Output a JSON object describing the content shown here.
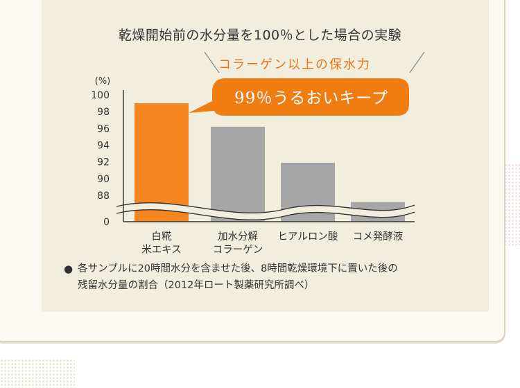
{
  "chart_data": {
    "type": "bar",
    "title": "乾燥開始前の水分量を100％とした場合の実験",
    "subtitle": "コラーゲン以上の保水力",
    "callout": "99％うるおいキープ",
    "ylabel": "(%)",
    "categories": [
      [
        "白糀",
        "米エキス"
      ],
      [
        "加水分解",
        "コラーゲン"
      ],
      [
        "ヒアルロン酸"
      ],
      [
        "コメ発酵液"
      ]
    ],
    "values": [
      99.0,
      96.2,
      91.9,
      87.2
    ],
    "yticks": [
      "100",
      "98",
      "96",
      "94",
      "92",
      "90",
      "88"
    ],
    "yzero": "0",
    "ylim": [
      88,
      100
    ],
    "axis_break": true,
    "grid": false,
    "colors": [
      "#f5861f",
      "#a6a6a6",
      "#a6a6a6",
      "#a6a6a6"
    ]
  },
  "note": {
    "bullet": "●",
    "lines": [
      "各サンプルに20時間水分を含ませた後、8時間乾燥環境下に置いた後の",
      "残留水分量の割合（2012年ロート製薬研究所調べ）"
    ]
  },
  "colors": {
    "accent": "#e8771c",
    "bubble": "#f07d12",
    "panel": "#f2eedd",
    "card": "#fbf9f1"
  }
}
